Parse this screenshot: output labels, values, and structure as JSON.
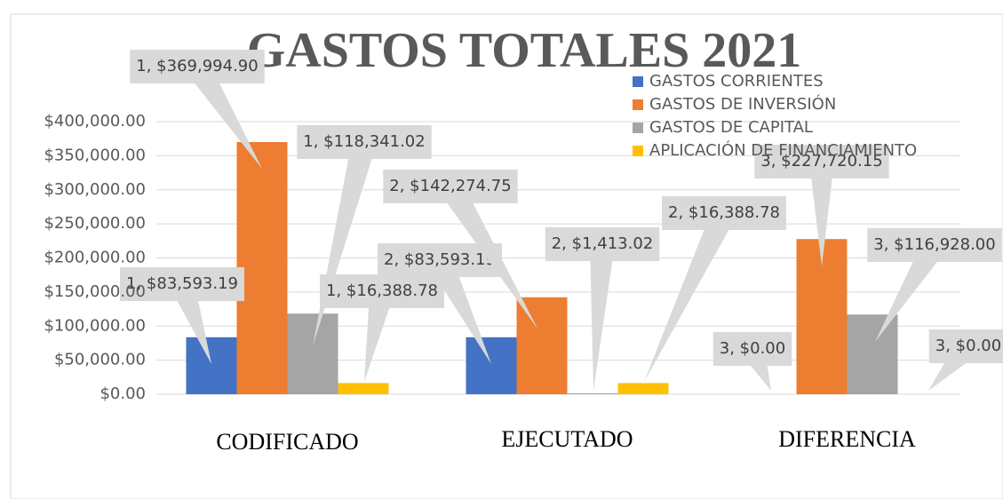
{
  "chart_data": {
    "type": "bar",
    "title": "GASTOS TOTALES 2021",
    "categories": [
      "CODIFICADO",
      "EJECUTADO",
      "DIFERENCIA"
    ],
    "series": [
      {
        "name": "GASTOS CORRIENTES",
        "color": "#4472c4",
        "values": [
          83593.19,
          83593.19,
          0
        ],
        "value_labels": [
          "1, $83,593.19",
          "2, $83,593.19",
          "3, $0.00"
        ]
      },
      {
        "name": "GASTOS DE INVERSIÓN",
        "color": "#ed7d31",
        "values": [
          369994.9,
          142274.75,
          227720.15
        ],
        "value_labels": [
          "1, $369,994.90",
          "2, $142,274.75",
          "3, $227,720.15"
        ]
      },
      {
        "name": "GASTOS DE CAPITAL",
        "color": "#a5a5a5",
        "values": [
          118341.02,
          1413.02,
          116928.0
        ],
        "value_labels": [
          "1, $118,341.02",
          "2, $1,413.02",
          "3, $116,928.00"
        ]
      },
      {
        "name": "APLICACIÓN DE FINANCIAMIENTO",
        "color": "#ffc000",
        "values": [
          16388.78,
          16388.78,
          0
        ],
        "value_labels": [
          "1, $16,388.78",
          "2, $16,388.78",
          "3, $0.00"
        ]
      }
    ],
    "ylim": [
      0,
      400000
    ],
    "yticks": [
      {
        "value": 0,
        "label": "$0.00"
      },
      {
        "value": 50000,
        "label": "$50,000.00"
      },
      {
        "value": 100000,
        "label": "$100,000.00"
      },
      {
        "value": 150000,
        "label": "$150,000.00"
      },
      {
        "value": 200000,
        "label": "$200,000.00"
      },
      {
        "value": 250000,
        "label": "$250,000.00"
      },
      {
        "value": 300000,
        "label": "$300,000.00"
      },
      {
        "value": 350000,
        "label": "$350,000.00"
      },
      {
        "value": 400000,
        "label": "$400,000.00"
      }
    ],
    "grid": true,
    "legend": "top-right"
  }
}
